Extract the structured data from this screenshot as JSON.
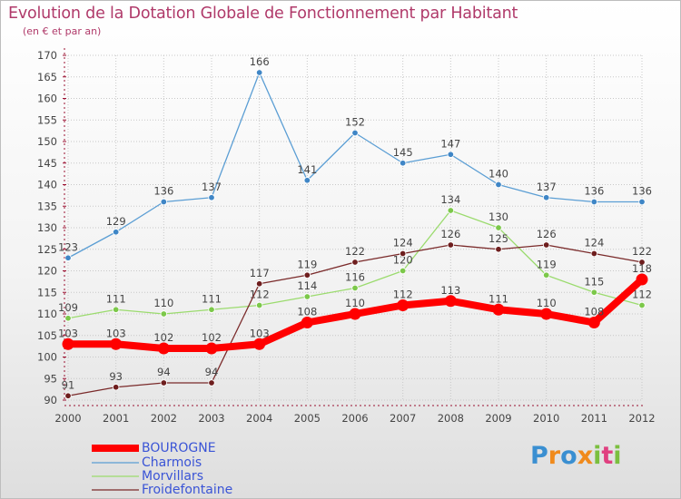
{
  "title": "Evolution de la Dotation Globale de Fonctionnement par Habitant",
  "subtitle": "(en € et par an)",
  "brand": "Proxiti",
  "colors": {
    "title": "#b03a6a",
    "axis": "#9a1030",
    "grid": "#c8c8c8"
  },
  "chart_data": {
    "type": "line",
    "categories": [
      "2000",
      "2001",
      "2002",
      "2003",
      "2004",
      "2005",
      "2006",
      "2007",
      "2008",
      "2009",
      "2010",
      "2011",
      "2012"
    ],
    "ylim": [
      90,
      170
    ],
    "yticks": [
      90,
      95,
      100,
      105,
      110,
      115,
      120,
      125,
      130,
      135,
      140,
      145,
      150,
      155,
      160,
      165,
      170
    ],
    "series": [
      {
        "name": "BOUROGNE",
        "color": "#ff0000",
        "label_color": "#3a54d6",
        "dot": "#ff0000",
        "values": [
          103,
          103,
          102,
          102,
          103,
          108,
          110,
          112,
          113,
          111,
          110,
          108,
          118
        ]
      },
      {
        "name": "Charmois",
        "color": "#5b9ed4",
        "label_color": "#3a54d6",
        "dot": "#3f86c6",
        "values": [
          123,
          129,
          136,
          137,
          166,
          141,
          152,
          145,
          147,
          140,
          137,
          136,
          136
        ]
      },
      {
        "name": "Morvillars",
        "color": "#9bdb6e",
        "label_color": "#3a54d6",
        "dot": "#7cc84a",
        "values": [
          109,
          111,
          110,
          111,
          112,
          114,
          116,
          120,
          134,
          130,
          119,
          115,
          112
        ]
      },
      {
        "name": "Froidefontaine",
        "color": "#7a2a2a",
        "label_color": "#3a54d6",
        "dot": "#6e1e1e",
        "values": [
          91,
          93,
          94,
          94,
          117,
          119,
          122,
          124,
          126,
          125,
          126,
          124,
          122
        ]
      }
    ]
  }
}
